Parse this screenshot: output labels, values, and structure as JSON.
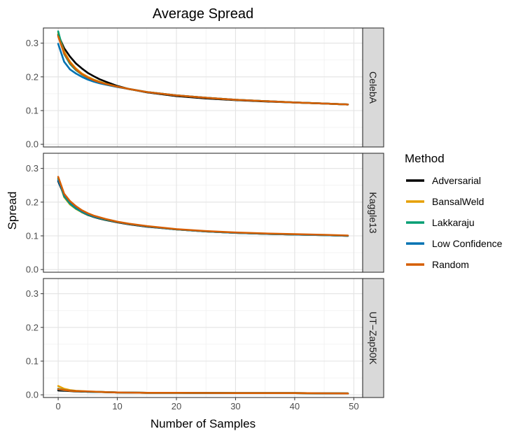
{
  "chart_data": {
    "type": "line",
    "title": "Average Spread",
    "xlabel": "Number of Samples",
    "ylabel": "Spread",
    "xlim": [
      -2.5,
      51.5
    ],
    "ylim": [
      -0.008,
      0.345
    ],
    "x_ticks": [
      0,
      10,
      20,
      30,
      40,
      50
    ],
    "y_ticks": [
      0.0,
      0.1,
      0.2,
      0.3
    ],
    "y_tick_labels": [
      "0.0",
      "0.1",
      "0.2",
      "0.3"
    ],
    "legend": {
      "title": "Method",
      "placement": "right",
      "entries": [
        "Adversarial",
        "BansalWeld",
        "Lakkaraju",
        "Low Confidence",
        "Random"
      ]
    },
    "colors": {
      "Adversarial": "#000000",
      "BansalWeld": "#E69F00",
      "Lakkaraju": "#009E73",
      "Low Confidence": "#0072B2",
      "Random": "#D55E00"
    },
    "facets": [
      {
        "label": "CelebA",
        "series": [
          {
            "name": "Adversarial",
            "x": [
              0,
              1,
              2,
              3,
              4,
              5,
              6,
              7,
              8,
              10,
              12,
              15,
              20,
              25,
              30,
              35,
              40,
              45,
              49
            ],
            "values": [
              0.325,
              0.285,
              0.26,
              0.24,
              0.225,
              0.212,
              0.202,
              0.193,
              0.186,
              0.173,
              0.164,
              0.154,
              0.143,
              0.136,
              0.131,
              0.127,
              0.124,
              0.121,
              0.118
            ]
          },
          {
            "name": "BansalWeld",
            "x": [
              0,
              1,
              2,
              3,
              4,
              5,
              6,
              7,
              8,
              10,
              12,
              15,
              20,
              25,
              30,
              35,
              40,
              45,
              49
            ],
            "values": [
              0.33,
              0.275,
              0.245,
              0.225,
              0.21,
              0.2,
              0.192,
              0.186,
              0.18,
              0.171,
              0.164,
              0.155,
              0.145,
              0.138,
              0.132,
              0.128,
              0.124,
              0.121,
              0.118
            ]
          },
          {
            "name": "Lakkaraju",
            "x": [
              0,
              1,
              2,
              3,
              4,
              5,
              6,
              7,
              8,
              10,
              12,
              15,
              20,
              25,
              30,
              35,
              40,
              45,
              49
            ],
            "values": [
              0.335,
              0.268,
              0.238,
              0.22,
              0.207,
              0.197,
              0.19,
              0.184,
              0.179,
              0.171,
              0.164,
              0.155,
              0.145,
              0.138,
              0.132,
              0.128,
              0.124,
              0.121,
              0.118
            ]
          },
          {
            "name": "Low Confidence",
            "x": [
              0,
              1,
              2,
              3,
              4,
              5,
              6,
              7,
              8,
              10,
              12,
              15,
              20,
              25,
              30,
              35,
              40,
              45,
              49
            ],
            "values": [
              0.298,
              0.245,
              0.222,
              0.21,
              0.2,
              0.192,
              0.186,
              0.181,
              0.177,
              0.17,
              0.164,
              0.155,
              0.145,
              0.138,
              0.132,
              0.128,
              0.124,
              0.121,
              0.118
            ]
          },
          {
            "name": "Random",
            "x": [
              0,
              1,
              2,
              3,
              4,
              5,
              6,
              7,
              8,
              10,
              12,
              15,
              20,
              25,
              30,
              35,
              40,
              45,
              49
            ],
            "values": [
              0.32,
              0.27,
              0.242,
              0.222,
              0.208,
              0.198,
              0.19,
              0.184,
              0.179,
              0.171,
              0.164,
              0.155,
              0.145,
              0.138,
              0.132,
              0.128,
              0.124,
              0.121,
              0.118
            ]
          }
        ]
      },
      {
        "label": "Kaggle13",
        "series": [
          {
            "name": "Adversarial",
            "x": [
              0,
              1,
              2,
              3,
              4,
              5,
              6,
              7,
              8,
              10,
              12,
              15,
              20,
              25,
              30,
              35,
              40,
              45,
              49
            ],
            "values": [
              0.262,
              0.22,
              0.198,
              0.182,
              0.17,
              0.162,
              0.156,
              0.151,
              0.147,
              0.14,
              0.134,
              0.127,
              0.119,
              0.113,
              0.109,
              0.106,
              0.104,
              0.102,
              0.1
            ]
          },
          {
            "name": "BansalWeld",
            "x": [
              0,
              1,
              2,
              3,
              4,
              5,
              6,
              7,
              8,
              10,
              12,
              15,
              20,
              25,
              30,
              35,
              40,
              45,
              49
            ],
            "values": [
              0.27,
              0.215,
              0.193,
              0.18,
              0.17,
              0.163,
              0.157,
              0.152,
              0.148,
              0.141,
              0.135,
              0.128,
              0.119,
              0.113,
              0.109,
              0.106,
              0.104,
              0.102,
              0.1
            ]
          },
          {
            "name": "Lakkaraju",
            "x": [
              0,
              1,
              2,
              3,
              4,
              5,
              6,
              7,
              8,
              10,
              12,
              15,
              20,
              25,
              30,
              35,
              40,
              45,
              49
            ],
            "values": [
              0.27,
              0.217,
              0.195,
              0.181,
              0.171,
              0.163,
              0.157,
              0.152,
              0.148,
              0.141,
              0.135,
              0.128,
              0.119,
              0.113,
              0.109,
              0.106,
              0.104,
              0.102,
              0.1
            ]
          },
          {
            "name": "Low Confidence",
            "x": [
              0,
              1,
              2,
              3,
              4,
              5,
              6,
              7,
              8,
              10,
              12,
              15,
              20,
              25,
              30,
              35,
              40,
              45,
              49
            ],
            "values": [
              0.265,
              0.222,
              0.2,
              0.185,
              0.173,
              0.165,
              0.158,
              0.153,
              0.149,
              0.141,
              0.135,
              0.128,
              0.119,
              0.113,
              0.109,
              0.106,
              0.104,
              0.102,
              0.1
            ]
          },
          {
            "name": "Random",
            "x": [
              0,
              1,
              2,
              3,
              4,
              5,
              6,
              7,
              8,
              10,
              12,
              15,
              20,
              25,
              30,
              35,
              40,
              45,
              49
            ],
            "values": [
              0.275,
              0.225,
              0.203,
              0.188,
              0.176,
              0.167,
              0.16,
              0.155,
              0.15,
              0.142,
              0.136,
              0.129,
              0.12,
              0.114,
              0.11,
              0.107,
              0.105,
              0.103,
              0.101
            ]
          }
        ]
      },
      {
        "label": "UT−Zap50K",
        "series": [
          {
            "name": "Adversarial",
            "x": [
              0,
              1,
              2,
              3,
              5,
              8,
              10,
              15,
              20,
              30,
              40,
              49
            ],
            "values": [
              0.013,
              0.012,
              0.011,
              0.01,
              0.009,
              0.008,
              0.007,
              0.006,
              0.006,
              0.005,
              0.005,
              0.004
            ]
          },
          {
            "name": "BansalWeld",
            "x": [
              0,
              1,
              2,
              3,
              5,
              8,
              10,
              15,
              20,
              30,
              40,
              49
            ],
            "values": [
              0.026,
              0.018,
              0.014,
              0.012,
              0.01,
              0.008,
              0.007,
              0.006,
              0.006,
              0.005,
              0.005,
              0.004
            ]
          },
          {
            "name": "Lakkaraju",
            "x": [
              0,
              1,
              2,
              3,
              5,
              8,
              10,
              15,
              20,
              30,
              40,
              49
            ],
            "values": [
              0.018,
              0.014,
              0.012,
              0.011,
              0.009,
              0.008,
              0.007,
              0.006,
              0.006,
              0.005,
              0.005,
              0.004
            ]
          },
          {
            "name": "Low Confidence",
            "x": [
              0,
              1,
              2,
              3,
              5,
              8,
              10,
              15,
              20,
              30,
              40,
              49
            ],
            "values": [
              0.016,
              0.013,
              0.012,
              0.011,
              0.009,
              0.008,
              0.007,
              0.006,
              0.006,
              0.005,
              0.005,
              0.004
            ]
          },
          {
            "name": "Random",
            "x": [
              0,
              1,
              2,
              3,
              5,
              8,
              10,
              15,
              20,
              30,
              40,
              49
            ],
            "values": [
              0.017,
              0.014,
              0.012,
              0.011,
              0.01,
              0.008,
              0.007,
              0.006,
              0.006,
              0.005,
              0.005,
              0.004
            ]
          }
        ]
      }
    ]
  }
}
